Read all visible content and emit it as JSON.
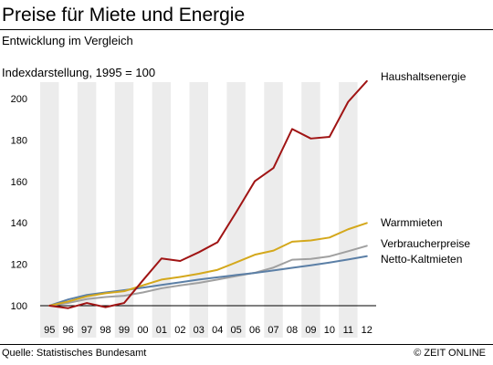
{
  "header": {
    "title": "Preise für Miete und Energie",
    "subtitle": "Entwicklung im Vergleich",
    "index_note": "Indexdarstellung, 1995 = 100"
  },
  "footer": {
    "source": "Quelle: Statistisches Bundesamt",
    "credit": "© ZEIT ONLINE"
  },
  "chart_data": {
    "type": "line",
    "title": "Preise für Miete und Energie",
    "subtitle": "Entwicklung im Vergleich",
    "xlabel": "",
    "ylabel": "",
    "categories": [
      "95",
      "96",
      "97",
      "98",
      "99",
      "00",
      "01",
      "02",
      "03",
      "04",
      "05",
      "06",
      "07",
      "08",
      "09",
      "10",
      "11",
      "12"
    ],
    "y_ticks": [
      100,
      120,
      140,
      160,
      180,
      200
    ],
    "ylim": [
      100,
      210
    ],
    "grid": false,
    "alternating_year_bands": true,
    "background_band_color": "#ececec",
    "series": [
      {
        "name": "Haushaltsenergie",
        "color": "#a01414",
        "values": [
          100,
          98.8,
          101.3,
          99.3,
          101.3,
          112.2,
          122.8,
          121.6,
          125.8,
          130.6,
          145.1,
          160.1,
          166.5,
          185.3,
          180.7,
          181.5,
          198.4,
          208.4
        ]
      },
      {
        "name": "Warmmieten",
        "color": "#d4a81c",
        "values": [
          100,
          102,
          104.5,
          106,
          107,
          109.8,
          112.6,
          113.9,
          115.4,
          117.3,
          120.9,
          124.6,
          126.6,
          130.9,
          131.5,
          132.9,
          136.9,
          139.9
        ]
      },
      {
        "name": "Verbraucherpreise",
        "color": "#a0a0a0",
        "values": [
          100,
          101.3,
          103.2,
          104.2,
          104.8,
          106.4,
          108.4,
          109.8,
          111,
          112.6,
          114.3,
          115.9,
          118.4,
          122.2,
          122.6,
          123.8,
          126.3,
          128.9
        ]
      },
      {
        "name": "Netto-Kaltmieten",
        "color": "#5b7fa6",
        "values": [
          100,
          103,
          105.2,
          106.4,
          107.5,
          108.7,
          110,
          111.3,
          112.6,
          113.7,
          114.8,
          115.8,
          117,
          118.3,
          119.5,
          120.8,
          122.3,
          123.9
        ]
      }
    ]
  }
}
